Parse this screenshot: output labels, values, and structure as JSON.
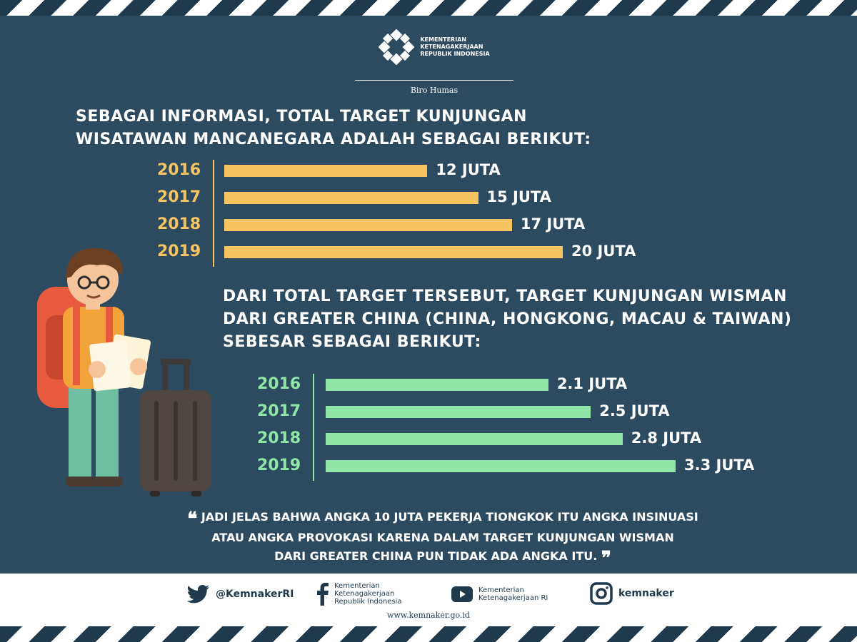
{
  "header": {
    "org_lines": [
      "KEMENTERIAN",
      "KETENAGAKERJAAN",
      "REPUBLIK INDONESIA"
    ],
    "subtitle": "Biro Humas"
  },
  "heading1": {
    "line1": "SEBAGAI INFORMASI, TOTAL TARGET KUNJUNGAN",
    "line2": "WISATAWAN MANCANEGARA ADALAH SEBAGAI BERIKUT:"
  },
  "heading2": {
    "line1": "DARI TOTAL TARGET TERSEBUT, TARGET KUNJUNGAN WISMAN",
    "line2": "DARI GREATER CHINA (CHINA, HONGKONG, MACAU & TAIWAN)",
    "line3": "SEBESAR SEBAGAI BERIKUT:"
  },
  "chart_data": [
    {
      "type": "bar",
      "orientation": "horizontal",
      "categories": [
        "2016",
        "2017",
        "2018",
        "2019"
      ],
      "values": [
        12,
        15,
        17,
        20
      ],
      "value_labels": [
        "12 JUTA",
        "15 JUTA",
        "17 JUTA",
        "20 JUTA"
      ],
      "color": "#f7c462",
      "label_color": "#f7c462",
      "xlim": [
        0,
        20
      ]
    },
    {
      "type": "bar",
      "orientation": "horizontal",
      "categories": [
        "2016",
        "2017",
        "2018",
        "2019"
      ],
      "values": [
        2.1,
        2.5,
        2.8,
        3.3
      ],
      "value_labels": [
        "2.1 JUTA",
        "2.5 JUTA",
        "2.8 JUTA",
        "3.3 JUTA"
      ],
      "color": "#8fe6a6",
      "label_color": "#8fe6a6",
      "xlim": [
        0,
        3.3
      ]
    }
  ],
  "quote": {
    "line1": "JADI JELAS BAHWA ANGKA 10 JUTA PEKERJA TIONGKOK ITU ANGKA INSINUASI",
    "line2": "ATAU ANGKA PROVOKASI KARENA DALAM TARGET KUNJUNGAN WISMAN",
    "line3": "DARI GREATER CHINA PUN TIDAK ADA ANGKA ITU.",
    "open_mark": "❝",
    "close_mark": "❞"
  },
  "footer": {
    "twitter": "@KemnakerRI",
    "facebook_lines": [
      "Kementerian",
      "Ketenagakerjaan",
      "Republik Indonesia"
    ],
    "youtube_lines": [
      "Kementerian",
      "Ketenagakerjaan RI"
    ],
    "instagram": "kemnaker",
    "website": "www.kemnaker.go.id"
  },
  "colors": {
    "background": "#2d4b60",
    "dark_navy": "#1f3a4d",
    "bar1": "#f7c462",
    "bar2": "#8fe6a6"
  },
  "icons": [
    "kemnaker-logo-icon",
    "twitter-icon",
    "facebook-icon",
    "youtube-icon",
    "instagram-icon",
    "traveler-illustration",
    "suitcase-illustration"
  ]
}
